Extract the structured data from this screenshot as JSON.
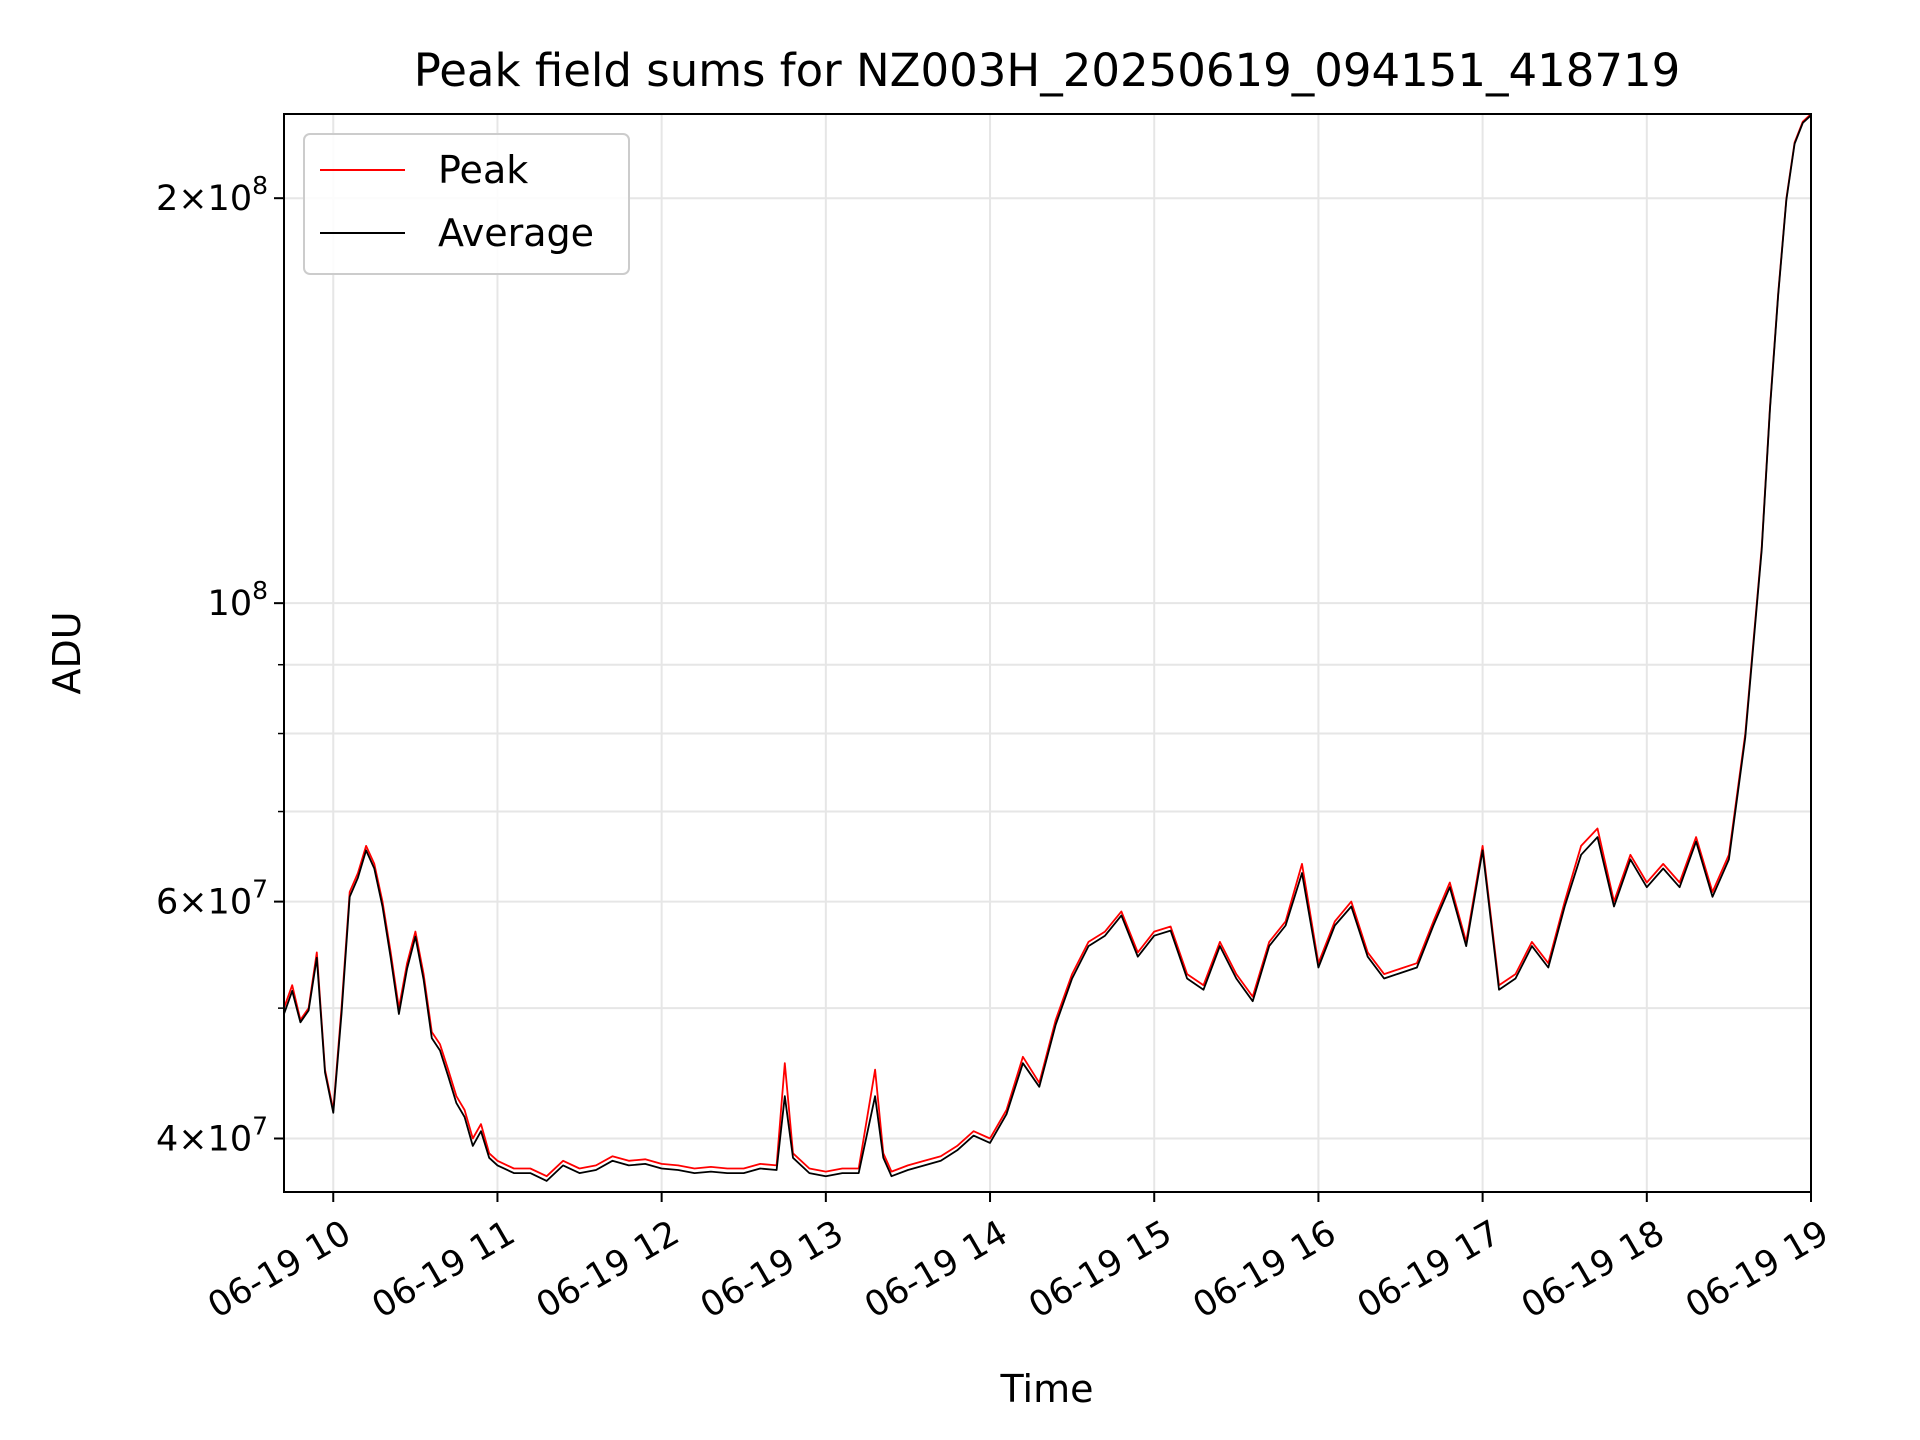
{
  "chart_data": {
    "type": "line",
    "title": "Peak field sums for NZ003H_20250619_094151_418719",
    "xlabel": "Time",
    "ylabel": "ADU",
    "yscale": "log",
    "xlim": [
      "2025-06-19 09:42",
      "2025-06-19 19:00"
    ],
    "ylim": [
      36500000,
      231000000
    ],
    "grid": true,
    "legend_position": "upper-left",
    "x_ticks": [
      "06-19 10",
      "06-19 11",
      "06-19 12",
      "06-19 13",
      "06-19 14",
      "06-19 15",
      "06-19 16",
      "06-19 17",
      "06-19 18",
      "06-19 19"
    ],
    "y_major_ticks": [
      {
        "value": 40000000,
        "mantissa": "4",
        "exponent": "7"
      },
      {
        "value": 60000000,
        "mantissa": "6",
        "exponent": "7"
      },
      {
        "value": 100000000,
        "mantissa": "",
        "exponent": "8"
      },
      {
        "value": 200000000,
        "mantissa": "2",
        "exponent": "8"
      }
    ],
    "y_minor_ticks": [
      50000000,
      70000000,
      80000000,
      90000000
    ],
    "series": [
      {
        "name": "Peak",
        "color": "#ff0000",
        "x": [
          "09:42",
          "09:45",
          "09:48",
          "09:51",
          "09:54",
          "09:57",
          "10:00",
          "10:03",
          "10:06",
          "10:09",
          "10:12",
          "10:15",
          "10:18",
          "10:21",
          "10:24",
          "10:27",
          "10:30",
          "10:33",
          "10:36",
          "10:39",
          "10:42",
          "10:45",
          "10:48",
          "10:51",
          "10:54",
          "10:57",
          "11:00",
          "11:06",
          "11:12",
          "11:18",
          "11:24",
          "11:30",
          "11:36",
          "11:42",
          "11:48",
          "11:54",
          "12:00",
          "12:06",
          "12:12",
          "12:18",
          "12:24",
          "12:30",
          "12:36",
          "12:42",
          "12:45",
          "12:48",
          "12:54",
          "13:00",
          "13:06",
          "13:12",
          "13:18",
          "13:21",
          "13:24",
          "13:30",
          "13:36",
          "13:42",
          "13:48",
          "13:54",
          "14:00",
          "14:06",
          "14:12",
          "14:18",
          "14:24",
          "14:30",
          "14:36",
          "14:42",
          "14:48",
          "14:54",
          "15:00",
          "15:06",
          "15:12",
          "15:18",
          "15:24",
          "15:30",
          "15:36",
          "15:42",
          "15:48",
          "15:54",
          "16:00",
          "16:06",
          "16:12",
          "16:18",
          "16:24",
          "16:30",
          "16:36",
          "16:42",
          "16:48",
          "16:54",
          "17:00",
          "17:06",
          "17:12",
          "17:18",
          "17:24",
          "17:30",
          "17:36",
          "17:42",
          "17:48",
          "17:54",
          "18:00",
          "18:06",
          "18:12",
          "18:18",
          "18:24",
          "18:30",
          "18:36",
          "18:42",
          "18:45",
          "18:48",
          "18:51",
          "18:54",
          "18:57",
          "19:00"
        ],
        "values": [
          50000000,
          52000000,
          49000000,
          50000000,
          55000000,
          45000000,
          42000000,
          50000000,
          61000000,
          63000000,
          66000000,
          64000000,
          60000000,
          55000000,
          50000000,
          54000000,
          57000000,
          53000000,
          48000000,
          47000000,
          45000000,
          43000000,
          42000000,
          40000000,
          41000000,
          39000000,
          38500000,
          38000000,
          38000000,
          37500000,
          38500000,
          38000000,
          38200000,
          38800000,
          38500000,
          38600000,
          38300000,
          38200000,
          38000000,
          38100000,
          38000000,
          38000000,
          38300000,
          38200000,
          45500000,
          39000000,
          38000000,
          37800000,
          38000000,
          38000000,
          45000000,
          39000000,
          37800000,
          38200000,
          38500000,
          38800000,
          39500000,
          40500000,
          40000000,
          42000000,
          46000000,
          44000000,
          49000000,
          53000000,
          56000000,
          57000000,
          59000000,
          55000000,
          57000000,
          57500000,
          53000000,
          52000000,
          56000000,
          53000000,
          51000000,
          56000000,
          58000000,
          64000000,
          54000000,
          58000000,
          60000000,
          55000000,
          53000000,
          53500000,
          54000000,
          58000000,
          62000000,
          56000000,
          66000000,
          52000000,
          53000000,
          56000000,
          54000000,
          60000000,
          66000000,
          68000000,
          60000000,
          65000000,
          62000000,
          64000000,
          62000000,
          67000000,
          61000000,
          65000000,
          80000000,
          110000000,
          140000000,
          170000000,
          200000000,
          220000000,
          228000000,
          231000000
        ]
      },
      {
        "name": "Average",
        "color": "#000000",
        "x": [
          "09:42",
          "09:45",
          "09:48",
          "09:51",
          "09:54",
          "09:57",
          "10:00",
          "10:03",
          "10:06",
          "10:09",
          "10:12",
          "10:15",
          "10:18",
          "10:21",
          "10:24",
          "10:27",
          "10:30",
          "10:33",
          "10:36",
          "10:39",
          "10:42",
          "10:45",
          "10:48",
          "10:51",
          "10:54",
          "10:57",
          "11:00",
          "11:06",
          "11:12",
          "11:18",
          "11:24",
          "11:30",
          "11:36",
          "11:42",
          "11:48",
          "11:54",
          "12:00",
          "12:06",
          "12:12",
          "12:18",
          "12:24",
          "12:30",
          "12:36",
          "12:42",
          "12:45",
          "12:48",
          "12:54",
          "13:00",
          "13:06",
          "13:12",
          "13:18",
          "13:21",
          "13:24",
          "13:30",
          "13:36",
          "13:42",
          "13:48",
          "13:54",
          "14:00",
          "14:06",
          "14:12",
          "14:18",
          "14:24",
          "14:30",
          "14:36",
          "14:42",
          "14:48",
          "14:54",
          "15:00",
          "15:06",
          "15:12",
          "15:18",
          "15:24",
          "15:30",
          "15:36",
          "15:42",
          "15:48",
          "15:54",
          "16:00",
          "16:06",
          "16:12",
          "16:18",
          "16:24",
          "16:30",
          "16:36",
          "16:42",
          "16:48",
          "16:54",
          "17:00",
          "17:06",
          "17:12",
          "17:18",
          "17:24",
          "17:30",
          "17:36",
          "17:42",
          "17:48",
          "17:54",
          "18:00",
          "18:06",
          "18:12",
          "18:18",
          "18:24",
          "18:30",
          "18:36",
          "18:42",
          "18:45",
          "18:48",
          "18:51",
          "18:54",
          "18:57",
          "19:00"
        ],
        "values": [
          49500000,
          51500000,
          48800000,
          49800000,
          54500000,
          44800000,
          41800000,
          49500000,
          60500000,
          62500000,
          65500000,
          63500000,
          59500000,
          54500000,
          49500000,
          53500000,
          56500000,
          52500000,
          47500000,
          46500000,
          44500000,
          42500000,
          41500000,
          39500000,
          40500000,
          38700000,
          38200000,
          37700000,
          37700000,
          37200000,
          38200000,
          37700000,
          37900000,
          38500000,
          38200000,
          38300000,
          38000000,
          37900000,
          37700000,
          37800000,
          37700000,
          37700000,
          38000000,
          37900000,
          43000000,
          38700000,
          37700000,
          37500000,
          37700000,
          37700000,
          43000000,
          38700000,
          37500000,
          37900000,
          38200000,
          38500000,
          39200000,
          40200000,
          39700000,
          41700000,
          45500000,
          43700000,
          48600000,
          52600000,
          55600000,
          56600000,
          58600000,
          54600000,
          56600000,
          57100000,
          52600000,
          51600000,
          55600000,
          52600000,
          50600000,
          55600000,
          57600000,
          63000000,
          53600000,
          57600000,
          59500000,
          54600000,
          52600000,
          53100000,
          53600000,
          57600000,
          61500000,
          55600000,
          65500000,
          51600000,
          52600000,
          55600000,
          53600000,
          59500000,
          65000000,
          67000000,
          59500000,
          64500000,
          61500000,
          63500000,
          61500000,
          66500000,
          60500000,
          64500000,
          79500000,
          109500000,
          139500000,
          169500000,
          199500000,
          219500000,
          227500000,
          230500000
        ]
      }
    ]
  }
}
